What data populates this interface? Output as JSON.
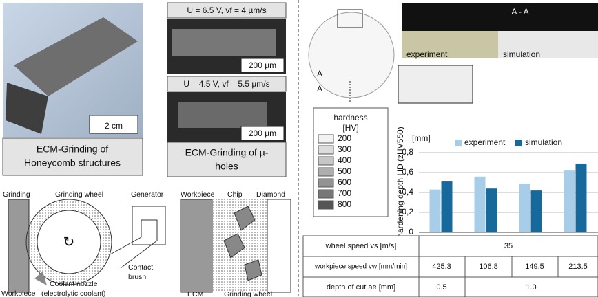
{
  "left": {
    "honeycomb": {
      "scale": "2 cm",
      "caption": [
        "ECM-Grinding of",
        "Honeycomb structures"
      ]
    },
    "sem": {
      "top_label": "U = 6.5 V, vf = 4 µm/s",
      "top_scale": "200 µm",
      "bottom_label": "U = 4.5 V, vf = 5.5 µm/s",
      "bottom_scale": "200 µm",
      "caption": [
        "ECM-Grinding of µ-",
        "holes"
      ]
    },
    "setup": {
      "labels": [
        "Grinding",
        "Grinding wheel",
        "Generator",
        "Contact",
        "brush",
        "Coolant nozzle",
        "(electrolytic coolant)",
        "Workpiece"
      ]
    },
    "detail": {
      "labels": [
        "Workpiece",
        "Chip",
        "Diamond",
        "ECM",
        "Grinding wheel"
      ]
    }
  },
  "right": {
    "section": {
      "marks": [
        "A",
        "A"
      ],
      "title": "A - A",
      "left_label": "experiment",
      "right_label": "simulation"
    },
    "hardness": {
      "title": [
        "hardness",
        "[HV]"
      ],
      "levels": [
        "200",
        "300",
        "400",
        "500",
        "600",
        "700",
        "800"
      ],
      "colors": [
        "#f2f2f2",
        "#dcdcdc",
        "#c6c6c6",
        "#aeaeae",
        "#939393",
        "#777777",
        "#555555"
      ]
    },
    "table": {
      "rows": [
        [
          "wheel speed vs [m/s]",
          "35"
        ],
        [
          "workpiece speed vw [mm/min]",
          "425.3",
          "106.8",
          "149.5",
          "213.5"
        ],
        [
          "depth of cut ae [mm]",
          "0.5",
          "1.0"
        ]
      ]
    }
  },
  "chart_data": {
    "type": "bar",
    "y_label": "hardening depth HD (zHV550)",
    "y_unit": "[mm]",
    "categories": [
      null,
      null,
      null,
      null
    ],
    "series": [
      {
        "name": "experiment",
        "color": "#a8cde8",
        "values": [
          0.43,
          0.56,
          0.49,
          0.62
        ]
      },
      {
        "name": "simulation",
        "color": "#17699b",
        "values": [
          0.51,
          0.44,
          0.42,
          0.69
        ]
      }
    ],
    "ylim": [
      0,
      0.8
    ],
    "yticks": [
      0,
      {
        "value": 0.2,
        "label": "0,2"
      },
      {
        "value": 0.4,
        "label": "0,4"
      },
      {
        "value": 0.6,
        "label": "0,6"
      },
      {
        "value": 0.8,
        "label": "0,8"
      }
    ],
    "grid": true,
    "legend": "top"
  }
}
